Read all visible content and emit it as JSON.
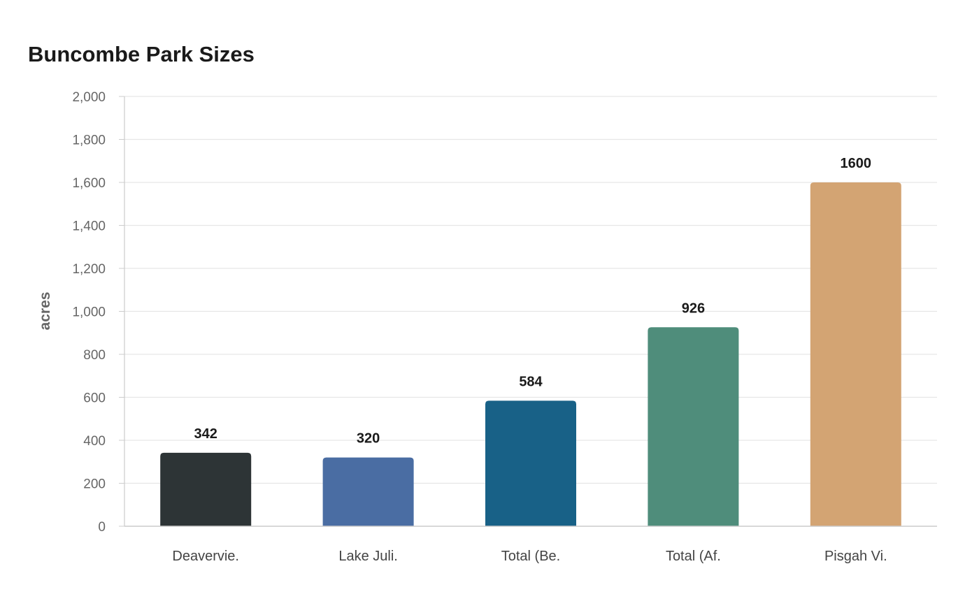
{
  "chart_data": {
    "type": "bar",
    "title": "Buncombe Park Sizes",
    "xlabel": "",
    "ylabel": "acres",
    "categories": [
      "Deavervie.",
      "Lake Juli.",
      "Total (Be.",
      "Total (Af.",
      "Pisgah Vi."
    ],
    "values": [
      342,
      320,
      584,
      926,
      1600
    ],
    "data_labels": [
      "342",
      "320",
      "584",
      "926",
      "1600"
    ],
    "colors": [
      "#2d3436",
      "#4a6da3",
      "#186187",
      "#4f8d7b",
      "#d3a473"
    ],
    "ylim": [
      0,
      2000
    ],
    "yticks": [
      0,
      200,
      400,
      600,
      800,
      1000,
      1200,
      1400,
      1600,
      1800,
      2000
    ],
    "ytick_labels": [
      "0",
      "200",
      "400",
      "600",
      "800",
      "1,000",
      "1,200",
      "1,400",
      "1,600",
      "1,800",
      "2,000"
    ],
    "grid": true,
    "legend": "none"
  }
}
